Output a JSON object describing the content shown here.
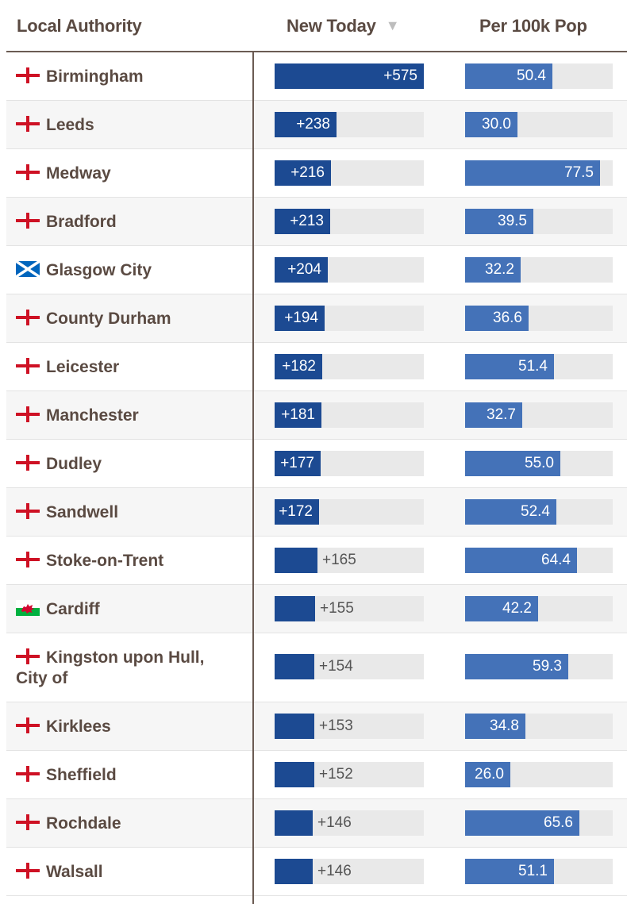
{
  "table": {
    "headers": {
      "authority": "Local Authority",
      "new_today": "New Today",
      "per_100k": "Per 100k Pop"
    },
    "sort_icon": "▼"
  },
  "chart_data": {
    "type": "table",
    "title": "",
    "columns": [
      "Local Authority",
      "New Today",
      "Per 100k Pop"
    ],
    "sorted_by": "New Today",
    "sort_direction": "descending",
    "new_today_max": 575,
    "per_100k_max": 85,
    "rows": [
      {
        "name": "Birmingham",
        "nation": "england",
        "new_today": 575,
        "new_today_label": "+575",
        "per_100k": 50.4,
        "per_100k_label": "50.4"
      },
      {
        "name": "Leeds",
        "nation": "england",
        "new_today": 238,
        "new_today_label": "+238",
        "per_100k": 30.0,
        "per_100k_label": "30.0"
      },
      {
        "name": "Medway",
        "nation": "england",
        "new_today": 216,
        "new_today_label": "+216",
        "per_100k": 77.5,
        "per_100k_label": "77.5"
      },
      {
        "name": "Bradford",
        "nation": "england",
        "new_today": 213,
        "new_today_label": "+213",
        "per_100k": 39.5,
        "per_100k_label": "39.5"
      },
      {
        "name": "Glasgow City",
        "nation": "scotland",
        "new_today": 204,
        "new_today_label": "+204",
        "per_100k": 32.2,
        "per_100k_label": "32.2"
      },
      {
        "name": "County Durham",
        "nation": "england",
        "new_today": 194,
        "new_today_label": "+194",
        "per_100k": 36.6,
        "per_100k_label": "36.6"
      },
      {
        "name": "Leicester",
        "nation": "england",
        "new_today": 182,
        "new_today_label": "+182",
        "per_100k": 51.4,
        "per_100k_label": "51.4"
      },
      {
        "name": "Manchester",
        "nation": "england",
        "new_today": 181,
        "new_today_label": "+181",
        "per_100k": 32.7,
        "per_100k_label": "32.7"
      },
      {
        "name": "Dudley",
        "nation": "england",
        "new_today": 177,
        "new_today_label": "+177",
        "per_100k": 55.0,
        "per_100k_label": "55.0"
      },
      {
        "name": "Sandwell",
        "nation": "england",
        "new_today": 172,
        "new_today_label": "+172",
        "per_100k": 52.4,
        "per_100k_label": "52.4"
      },
      {
        "name": "Stoke-on-Trent",
        "nation": "england",
        "new_today": 165,
        "new_today_label": "+165",
        "per_100k": 64.4,
        "per_100k_label": "64.4"
      },
      {
        "name": "Cardiff",
        "nation": "wales",
        "new_today": 155,
        "new_today_label": "+155",
        "per_100k": 42.2,
        "per_100k_label": "42.2"
      },
      {
        "name": "Kingston upon Hull, City of",
        "nation": "england",
        "new_today": 154,
        "new_today_label": "+154",
        "per_100k": 59.3,
        "per_100k_label": "59.3"
      },
      {
        "name": "Kirklees",
        "nation": "england",
        "new_today": 153,
        "new_today_label": "+153",
        "per_100k": 34.8,
        "per_100k_label": "34.8"
      },
      {
        "name": "Sheffield",
        "nation": "england",
        "new_today": 152,
        "new_today_label": "+152",
        "per_100k": 26.0,
        "per_100k_label": "26.0"
      },
      {
        "name": "Rochdale",
        "nation": "england",
        "new_today": 146,
        "new_today_label": "+146",
        "per_100k": 65.6,
        "per_100k_label": "65.6"
      },
      {
        "name": "Walsall",
        "nation": "england",
        "new_today": 146,
        "new_today_label": "+146",
        "per_100k": 51.1,
        "per_100k_label": "51.1"
      }
    ]
  },
  "colors": {
    "new_bar": "#1c4a92",
    "per_bar": "#4472b8",
    "bar_track": "#e9e9e9",
    "text": "#5a4a42",
    "england_cross": "#ce1124",
    "scotland_blue": "#0065bd",
    "wales_green": "#00b140",
    "wales_red": "#d30731"
  }
}
